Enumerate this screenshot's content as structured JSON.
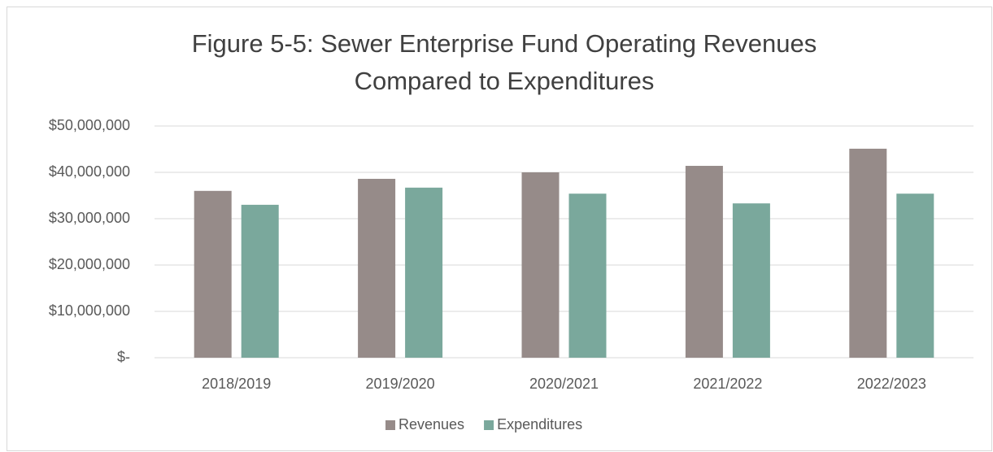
{
  "chart_data": {
    "type": "bar",
    "title": [
      "Figure 5-5: Sewer Enterprise Fund Operating Revenues",
      "Compared to Expenditures"
    ],
    "categories": [
      "2018/2019",
      "2019/2020",
      "2020/2021",
      "2021/2022",
      "2022/2023"
    ],
    "series": [
      {
        "name": "Revenues",
        "color": "#968b89",
        "values": [
          36000000,
          38600000,
          40000000,
          41400000,
          45100000
        ]
      },
      {
        "name": "Expenditures",
        "color": "#7aa89c",
        "values": [
          33000000,
          36700000,
          35400000,
          33300000,
          35400000
        ]
      }
    ],
    "ylim": [
      0,
      50000000
    ],
    "yticks": [
      {
        "value": 0,
        "label": "$-"
      },
      {
        "value": 10000000,
        "label": "$10,000,000"
      },
      {
        "value": 20000000,
        "label": "$20,000,000"
      },
      {
        "value": 30000000,
        "label": "$30,000,000"
      },
      {
        "value": 40000000,
        "label": "$40,000,000"
      },
      {
        "value": 50000000,
        "label": "$50,000,000"
      }
    ],
    "grid": true,
    "legend": "bottom"
  }
}
